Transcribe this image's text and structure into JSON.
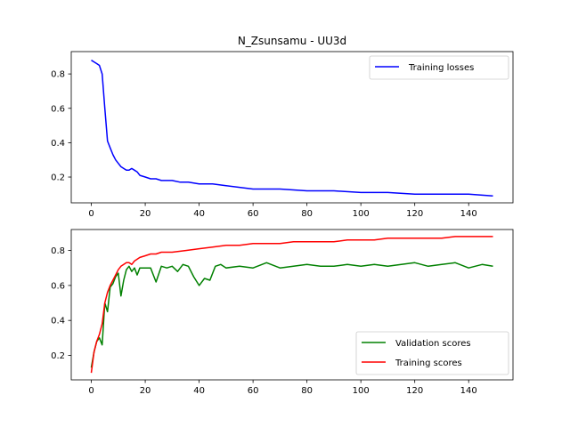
{
  "chart_data": [
    {
      "type": "line",
      "title": "N_Zsunsamu - UU3d",
      "xlabel": "",
      "ylabel": "",
      "xlim": [
        -7.45,
        156.45
      ],
      "ylim": [
        0.05,
        0.93
      ],
      "xticks": [
        0,
        20,
        40,
        60,
        80,
        100,
        120,
        140
      ],
      "yticks": [
        0.2,
        0.4,
        0.6,
        0.8
      ],
      "legend_position": "upper right",
      "series": [
        {
          "name": "Training losses",
          "color": "#0000ff",
          "x": [
            0,
            1,
            2,
            3,
            4,
            5,
            6,
            7,
            8,
            9,
            10,
            11,
            12,
            13,
            14,
            15,
            16,
            17,
            18,
            20,
            22,
            24,
            26,
            28,
            30,
            33,
            36,
            40,
            45,
            50,
            55,
            60,
            70,
            80,
            90,
            100,
            110,
            120,
            130,
            140,
            149
          ],
          "values": [
            0.88,
            0.87,
            0.86,
            0.85,
            0.8,
            0.6,
            0.41,
            0.37,
            0.33,
            0.3,
            0.28,
            0.26,
            0.25,
            0.24,
            0.24,
            0.25,
            0.24,
            0.23,
            0.21,
            0.2,
            0.19,
            0.19,
            0.18,
            0.18,
            0.18,
            0.17,
            0.17,
            0.16,
            0.16,
            0.15,
            0.14,
            0.13,
            0.13,
            0.12,
            0.12,
            0.11,
            0.11,
            0.1,
            0.1,
            0.1,
            0.09
          ]
        }
      ]
    },
    {
      "type": "line",
      "title": "",
      "xlabel": "",
      "ylabel": "",
      "xlim": [
        -7.45,
        156.45
      ],
      "ylim": [
        0.06,
        0.92
      ],
      "xticks": [
        0,
        20,
        40,
        60,
        80,
        100,
        120,
        140
      ],
      "yticks": [
        0.2,
        0.4,
        0.6,
        0.8
      ],
      "legend_position": "lower right",
      "series": [
        {
          "name": "Validation scores",
          "color": "#008000",
          "x": [
            0,
            1,
            2,
            3,
            4,
            5,
            6,
            7,
            8,
            9,
            10,
            11,
            12,
            13,
            14,
            15,
            16,
            17,
            18,
            20,
            22,
            24,
            26,
            28,
            30,
            32,
            34,
            36,
            38,
            40,
            42,
            44,
            46,
            48,
            50,
            55,
            60,
            65,
            70,
            75,
            80,
            85,
            90,
            95,
            100,
            105,
            110,
            115,
            120,
            125,
            130,
            135,
            140,
            145,
            149
          ],
          "values": [
            0.13,
            0.22,
            0.28,
            0.3,
            0.26,
            0.5,
            0.45,
            0.59,
            0.61,
            0.65,
            0.67,
            0.54,
            0.63,
            0.69,
            0.71,
            0.68,
            0.7,
            0.66,
            0.7,
            0.7,
            0.7,
            0.62,
            0.71,
            0.7,
            0.71,
            0.68,
            0.72,
            0.71,
            0.65,
            0.6,
            0.64,
            0.63,
            0.71,
            0.72,
            0.7,
            0.71,
            0.7,
            0.73,
            0.7,
            0.71,
            0.72,
            0.71,
            0.71,
            0.72,
            0.71,
            0.72,
            0.71,
            0.72,
            0.73,
            0.71,
            0.72,
            0.73,
            0.7,
            0.72,
            0.71
          ]
        },
        {
          "name": "Training scores",
          "color": "#ff0000",
          "x": [
            0,
            1,
            2,
            3,
            4,
            5,
            6,
            7,
            8,
            9,
            10,
            11,
            12,
            13,
            14,
            15,
            16,
            18,
            20,
            22,
            24,
            26,
            28,
            30,
            35,
            40,
            45,
            50,
            55,
            60,
            65,
            70,
            75,
            80,
            85,
            90,
            95,
            100,
            105,
            110,
            115,
            120,
            125,
            130,
            135,
            140,
            145,
            149
          ],
          "values": [
            0.1,
            0.22,
            0.28,
            0.32,
            0.38,
            0.5,
            0.56,
            0.6,
            0.63,
            0.66,
            0.69,
            0.71,
            0.72,
            0.73,
            0.73,
            0.72,
            0.74,
            0.76,
            0.77,
            0.78,
            0.78,
            0.79,
            0.79,
            0.79,
            0.8,
            0.81,
            0.82,
            0.83,
            0.83,
            0.84,
            0.84,
            0.84,
            0.85,
            0.85,
            0.85,
            0.85,
            0.86,
            0.86,
            0.86,
            0.87,
            0.87,
            0.87,
            0.87,
            0.87,
            0.88,
            0.88,
            0.88,
            0.88
          ]
        }
      ]
    }
  ]
}
